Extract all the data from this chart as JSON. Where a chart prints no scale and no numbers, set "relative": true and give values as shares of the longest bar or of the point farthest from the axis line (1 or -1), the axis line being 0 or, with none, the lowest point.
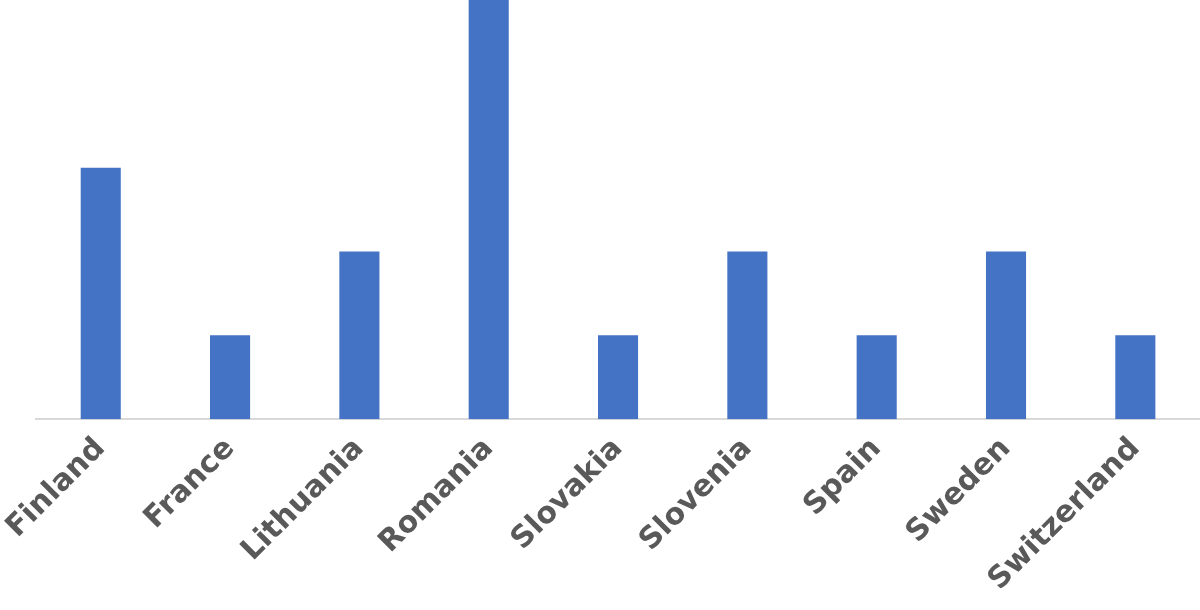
{
  "chart_data": {
    "type": "bar",
    "relative": true,
    "categories": [
      "Finland",
      "France",
      "Lithuania",
      "Romania",
      "Slovakia",
      "Slovenia",
      "Spain",
      "Sweden",
      "Switzerland"
    ],
    "values": [
      0.6,
      0.2,
      0.4,
      1,
      0.2,
      0.4,
      0.2,
      0.4,
      0.2
    ],
    "color": "#4472c4",
    "grid": false,
    "legend": false
  }
}
